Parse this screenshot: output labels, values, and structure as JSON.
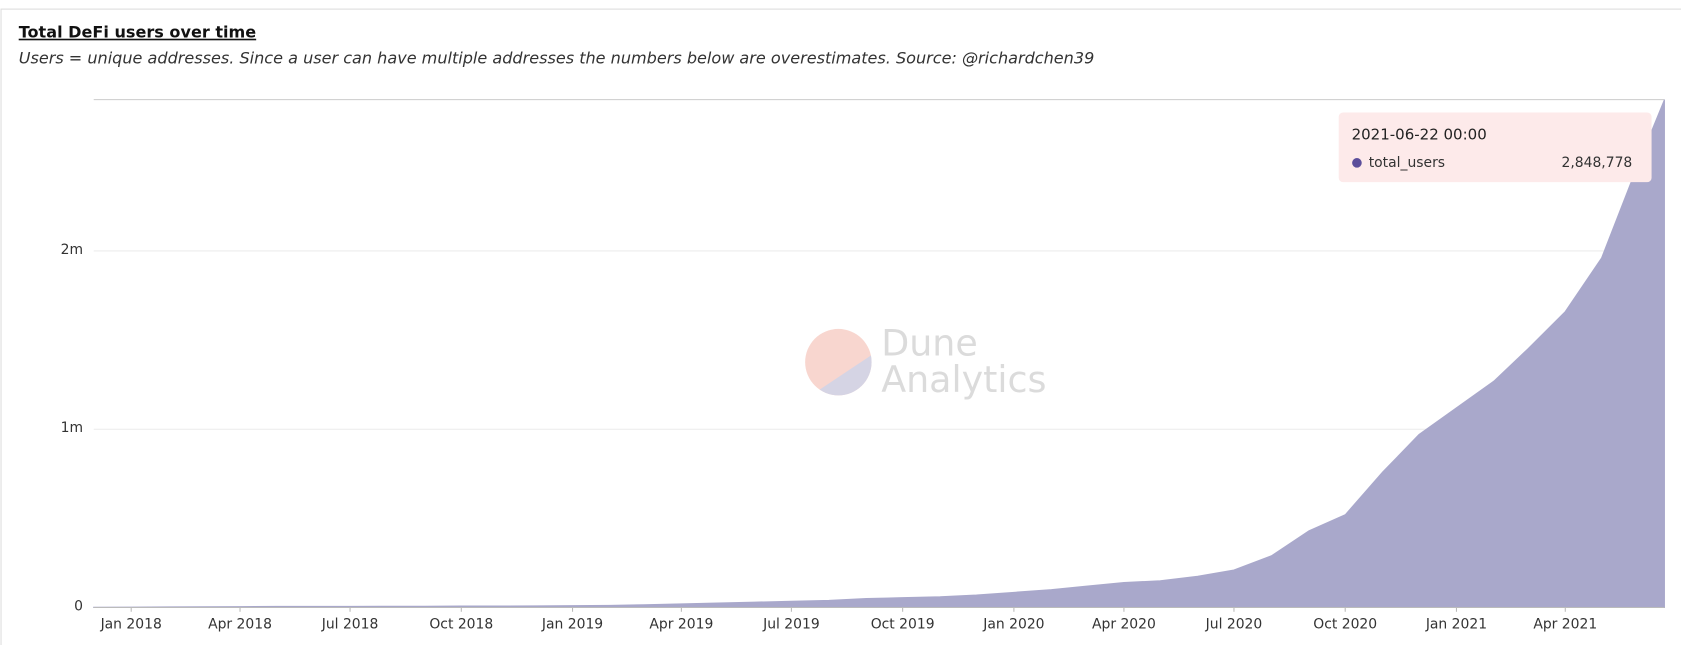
{
  "chart_data": {
    "type": "area",
    "title": "Total DeFi users over time",
    "subtitle": "Users = unique addresses. Since a user can have multiple addresses the numbers below are overestimates. Source: @richardchen39",
    "watermark": [
      "Dune",
      "Analytics"
    ],
    "x": [
      "2017-12",
      "2018-01",
      "2018-02",
      "2018-03",
      "2018-04",
      "2018-05",
      "2018-06",
      "2018-07",
      "2018-08",
      "2018-09",
      "2018-10",
      "2018-11",
      "2018-12",
      "2019-01",
      "2019-02",
      "2019-03",
      "2019-04",
      "2019-05",
      "2019-06",
      "2019-07",
      "2019-08",
      "2019-09",
      "2019-10",
      "2019-11",
      "2019-12",
      "2020-01",
      "2020-02",
      "2020-03",
      "2020-04",
      "2020-05",
      "2020-06",
      "2020-07",
      "2020-08",
      "2020-09",
      "2020-10",
      "2020-11",
      "2020-12",
      "2021-01",
      "2021-02",
      "2021-03",
      "2021-04",
      "2021-05",
      "2021-06",
      "2021-06-22 00:00"
    ],
    "series": [
      {
        "name": "total_users",
        "color": "#a9a8cb",
        "marker_color": "#5b4e9b",
        "values": [
          1000,
          2000,
          3000,
          4000,
          5000,
          6000,
          6000,
          6000,
          7000,
          7000,
          8000,
          8000,
          9000,
          10000,
          12000,
          15000,
          20000,
          25000,
          30000,
          35000,
          40000,
          50000,
          55000,
          60000,
          70000,
          85000,
          100000,
          120000,
          140000,
          150000,
          175000,
          210000,
          290000,
          430000,
          520000,
          760000,
          970000,
          1120000,
          1270000,
          1450000,
          1660000,
          1960000,
          2500000,
          2848778
        ],
        "value_labels": [
          null,
          null,
          null,
          null,
          null,
          null,
          null,
          null,
          null,
          null,
          null,
          null,
          null,
          null,
          null,
          null,
          null,
          null,
          null,
          null,
          null,
          null,
          null,
          null,
          null,
          null,
          null,
          null,
          null,
          null,
          null,
          null,
          null,
          null,
          null,
          null,
          null,
          null,
          null,
          null,
          null,
          null,
          null,
          "2,848,778"
        ]
      }
    ],
    "xlim": [
      "2017-12",
      "2021-06-22 00:00"
    ],
    "xticks": [
      {
        "value": "2018-01",
        "label": "Jan 2018"
      },
      {
        "value": "2018-04",
        "label": "Apr 2018"
      },
      {
        "value": "2018-07",
        "label": "Jul 2018"
      },
      {
        "value": "2018-10",
        "label": "Oct 2018"
      },
      {
        "value": "2019-01",
        "label": "Jan 2019"
      },
      {
        "value": "2019-04",
        "label": "Apr 2019"
      },
      {
        "value": "2019-07",
        "label": "Jul 2019"
      },
      {
        "value": "2019-10",
        "label": "Oct 2019"
      },
      {
        "value": "2020-01",
        "label": "Jan 2020"
      },
      {
        "value": "2020-04",
        "label": "Apr 2020"
      },
      {
        "value": "2020-07",
        "label": "Jul 2020"
      },
      {
        "value": "2020-10",
        "label": "Oct 2020"
      },
      {
        "value": "2021-01",
        "label": "Jan 2021"
      },
      {
        "value": "2021-04",
        "label": "Apr 2021"
      }
    ],
    "ylim": [
      0,
      2848778
    ],
    "yticks": [
      0,
      {
        "value": 1000000,
        "label": "1m"
      },
      {
        "value": 2000000,
        "label": "2m"
      }
    ],
    "grid": true
  }
}
